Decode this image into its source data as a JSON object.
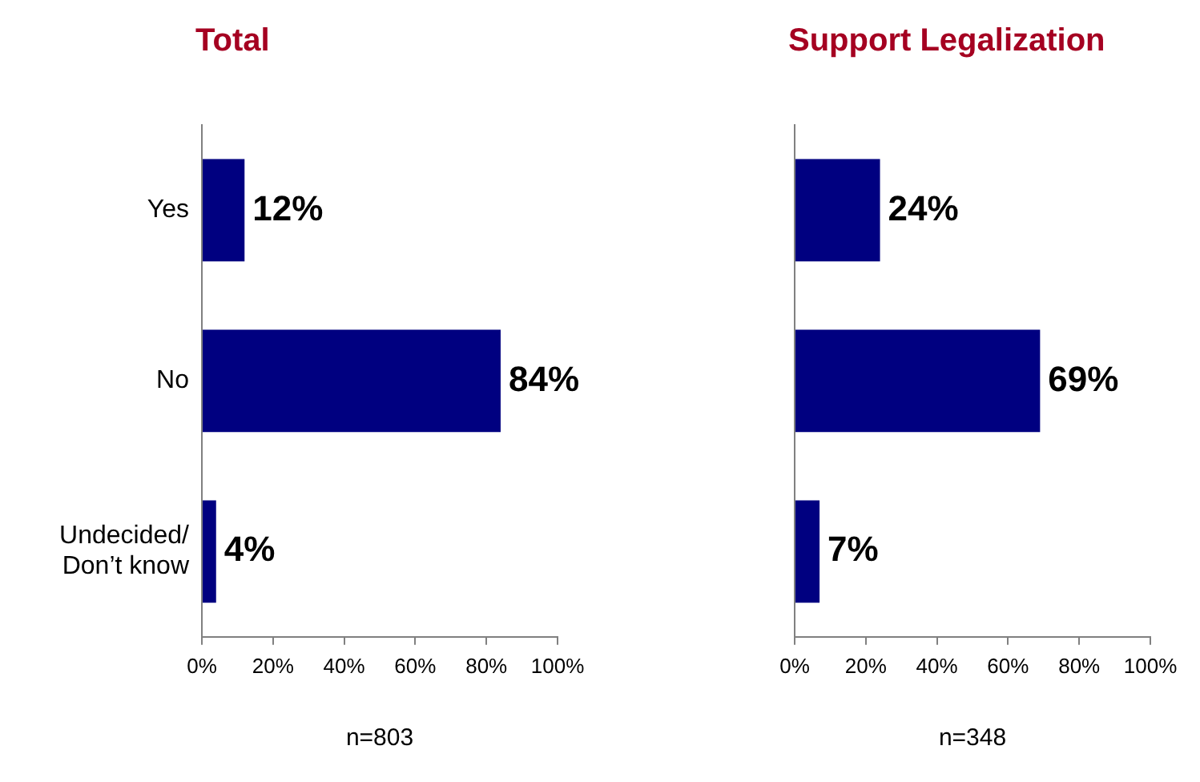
{
  "chart_data": [
    {
      "type": "bar",
      "orientation": "horizontal",
      "title": "Total",
      "xlabel": "n=803",
      "categories": [
        "Yes",
        "No",
        "Undecided/Don’t know"
      ],
      "values": [
        12,
        84,
        4
      ],
      "value_labels": [
        "12%",
        "84%",
        "4%"
      ],
      "color": "#000080",
      "xlim": [
        0,
        100
      ],
      "xticks": [
        {
          "value": 0,
          "label": "0%"
        },
        {
          "value": 20,
          "label": "20%"
        },
        {
          "value": 40,
          "label": "40%"
        },
        {
          "value": 60,
          "label": "60%"
        },
        {
          "value": 80,
          "label": "80%"
        },
        {
          "value": 100,
          "label": "100%"
        }
      ],
      "grid": false,
      "legend": false
    },
    {
      "type": "bar",
      "orientation": "horizontal",
      "title": "Support Legalization",
      "xlabel": "n=348",
      "categories": [
        null,
        null,
        null
      ],
      "values": [
        24,
        69,
        7
      ],
      "value_labels": [
        "24%",
        "69%",
        "7%"
      ],
      "color": "#000080",
      "xlim": [
        0,
        100
      ],
      "xticks": [
        {
          "value": 0,
          "label": "0%"
        },
        {
          "value": 20,
          "label": "20%"
        },
        {
          "value": 40,
          "label": "40%"
        },
        {
          "value": 60,
          "label": "60%"
        },
        {
          "value": 80,
          "label": "80%"
        },
        {
          "value": 100,
          "label": "100%"
        }
      ],
      "grid": false,
      "legend": false,
      "tick_labels": "x"
    }
  ]
}
